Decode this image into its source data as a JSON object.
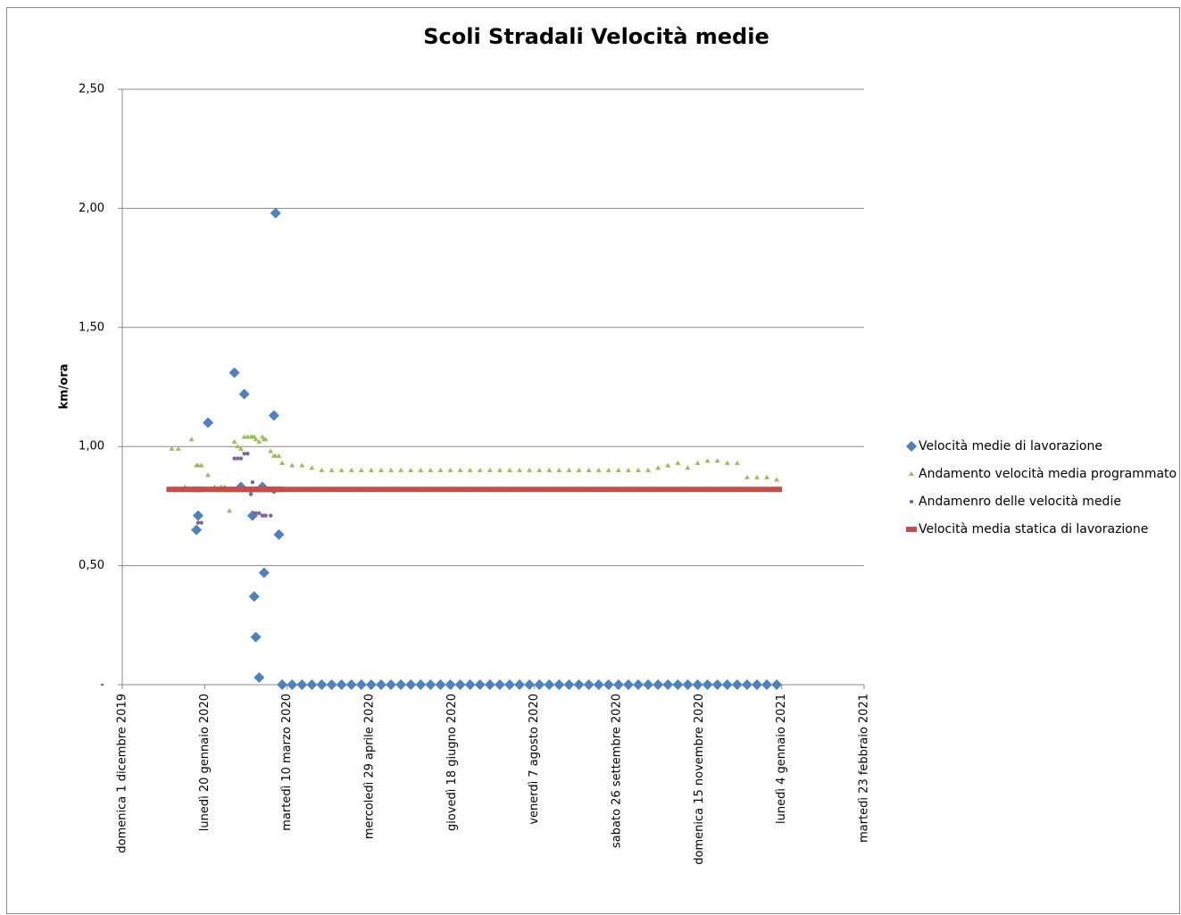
{
  "chart_data": {
    "type": "scatter",
    "title": "Scoli Stradali Velocità medie",
    "y_label": "km/ora",
    "xlim": [
      "2019-12-01",
      "2021-02-23"
    ],
    "xticks": [
      {
        "value": "2019-12-01",
        "label": "domenica 1 dicembre 2019"
      },
      {
        "value": "2020-01-20",
        "label": "lunedì 20 gennaio 2020"
      },
      {
        "value": "2020-03-10",
        "label": "martedì 10 marzo 2020"
      },
      {
        "value": "2020-04-29",
        "label": "mercoledì 29 aprile 2020"
      },
      {
        "value": "2020-06-18",
        "label": "giovedì 18 giugno 2020"
      },
      {
        "value": "2020-08-07",
        "label": "venerdì 7 agosto 2020"
      },
      {
        "value": "2020-09-26",
        "label": "sabato 26 settembre 2020"
      },
      {
        "value": "2020-11-15",
        "label": "domenica 15 novembre 2020"
      },
      {
        "value": "2021-01-04",
        "label": "lunedì 4 gennaio 2021"
      },
      {
        "value": "2021-02-23",
        "label": "martedì 23 febbraio 2021"
      }
    ],
    "ylim": [
      0,
      2.5
    ],
    "yticks": [
      {
        "value": 0,
        "label": "-"
      },
      {
        "value": 0.5,
        "label": "0,50"
      },
      {
        "value": 1,
        "label": "1,00"
      },
      {
        "value": 1.5,
        "label": "1,50"
      },
      {
        "value": 2,
        "label": "2,00"
      },
      {
        "value": 2.5,
        "label": "2,50"
      }
    ],
    "grid": true,
    "legend": "right",
    "x": [
      "2019-12-31",
      "2020-01-04",
      "2020-01-08",
      "2020-01-12",
      "2020-01-15",
      "2020-01-16",
      "2020-01-18",
      "2020-01-22",
      "2020-01-26",
      "2020-01-30",
      "2020-02-01",
      "2020-02-04",
      "2020-02-07",
      "2020-02-09",
      "2020-02-11",
      "2020-02-13",
      "2020-02-15",
      "2020-02-17",
      "2020-02-18",
      "2020-02-19",
      "2020-02-20",
      "2020-02-22",
      "2020-02-24",
      "2020-02-25",
      "2020-02-26",
      "2020-02-29",
      "2020-03-02",
      "2020-03-03",
      "2020-03-05",
      "2020-03-07",
      "2020-03-13",
      "2020-03-19",
      "2020-03-25",
      "2020-03-31",
      "2020-04-06",
      "2020-04-12",
      "2020-04-18",
      "2020-04-24",
      "2020-04-30",
      "2020-05-06",
      "2020-05-12",
      "2020-05-18",
      "2020-05-24",
      "2020-05-30",
      "2020-06-05",
      "2020-06-11",
      "2020-06-17",
      "2020-06-23",
      "2020-06-29",
      "2020-07-05",
      "2020-07-11",
      "2020-07-17",
      "2020-07-23",
      "2020-07-29",
      "2020-08-04",
      "2020-08-10",
      "2020-08-16",
      "2020-08-22",
      "2020-08-28",
      "2020-09-03",
      "2020-09-09",
      "2020-09-15",
      "2020-09-21",
      "2020-09-27",
      "2020-10-03",
      "2020-10-09",
      "2020-10-15",
      "2020-10-21",
      "2020-10-27",
      "2020-11-02",
      "2020-11-08",
      "2020-11-14",
      "2020-11-20",
      "2020-11-26",
      "2020-12-02",
      "2020-12-08",
      "2020-12-14",
      "2020-12-20",
      "2020-12-26",
      "2021-01-01"
    ],
    "series": [
      {
        "name": "Velocità medie di lavorazione",
        "color": "#4f81bd",
        "marker": "diamond",
        "values": [
          null,
          null,
          null,
          null,
          0.65,
          0.71,
          null,
          1.1,
          null,
          null,
          null,
          null,
          1.31,
          null,
          0.83,
          1.22,
          null,
          null,
          0.71,
          0.37,
          0.2,
          0.03,
          0.83,
          0.47,
          null,
          null,
          1.13,
          1.98,
          0.63,
          0,
          0,
          0,
          0,
          0,
          0,
          0,
          0,
          0,
          0,
          0,
          0,
          0,
          0,
          0,
          0,
          0,
          0,
          0,
          0,
          0,
          0,
          0,
          0,
          0,
          0,
          0,
          0,
          0,
          0,
          0,
          0,
          0,
          0,
          0,
          0,
          0,
          0,
          0,
          0,
          0,
          0,
          0,
          0,
          0,
          0,
          0,
          0,
          0,
          0,
          0
        ]
      },
      {
        "name": "Andamento velocità media programmato",
        "color": "#9bbb59",
        "marker": "triangle",
        "values": [
          0.99,
          0.99,
          0.83,
          1.03,
          0.92,
          0.92,
          0.92,
          0.88,
          0.83,
          0.83,
          0.83,
          0.73,
          1.02,
          1.0,
          0.99,
          1.04,
          1.04,
          1.04,
          1.04,
          1.04,
          1.03,
          1.02,
          1.04,
          1.03,
          1.03,
          0.98,
          0.96,
          0.96,
          0.96,
          0.93,
          0.92,
          0.92,
          0.91,
          0.9,
          0.9,
          0.9,
          0.9,
          0.9,
          0.9,
          0.9,
          0.9,
          0.9,
          0.9,
          0.9,
          0.9,
          0.9,
          0.9,
          0.9,
          0.9,
          0.9,
          0.9,
          0.9,
          0.9,
          0.9,
          0.9,
          0.9,
          0.9,
          0.9,
          0.9,
          0.9,
          0.9,
          0.9,
          0.9,
          0.9,
          0.9,
          0.9,
          0.9,
          0.91,
          0.92,
          0.93,
          0.91,
          0.93,
          0.94,
          0.94,
          0.93,
          0.93,
          0.87,
          0.87,
          0.87,
          0.86
        ]
      },
      {
        "name": "Andamenro delle velocità medie",
        "color": "#8064a2",
        "marker": "circle",
        "values": [
          null,
          null,
          null,
          null,
          null,
          0.68,
          0.68,
          0.82,
          0.82,
          0.82,
          0.82,
          0.82,
          0.95,
          0.95,
          0.95,
          0.97,
          0.97,
          0.8,
          0.85,
          0.72,
          0.72,
          0.72,
          0.71,
          0.71,
          0.71,
          0.71,
          0.81,
          0.82,
          null,
          null,
          null,
          null,
          null,
          null,
          null,
          null,
          null,
          null,
          null,
          null,
          null,
          null,
          null,
          null,
          null,
          null,
          null,
          null,
          null,
          null,
          null,
          null,
          null,
          null,
          null,
          null,
          null,
          null,
          null,
          null,
          null,
          null,
          null,
          null,
          null,
          null,
          null,
          null,
          null,
          null,
          null,
          null,
          null,
          null,
          null,
          null,
          null,
          null,
          null,
          null
        ]
      },
      {
        "name": "Velocità media statica di lavorazione",
        "color": "#c0504d",
        "marker": "square",
        "values": [
          0.82,
          0.82,
          0.82,
          0.82,
          0.82,
          0.82,
          0.82,
          0.82,
          0.82,
          0.82,
          0.82,
          0.82,
          0.82,
          0.82,
          0.82,
          0.82,
          0.82,
          0.82,
          0.82,
          0.82,
          0.82,
          0.82,
          0.82,
          0.82,
          0.82,
          0.82,
          0.82,
          0.82,
          0.82,
          0.82,
          0.82,
          0.82,
          0.82,
          0.82,
          0.82,
          0.82,
          0.82,
          0.82,
          0.82,
          0.82,
          0.82,
          0.82,
          0.82,
          0.82,
          0.82,
          0.82,
          0.82,
          0.82,
          0.82,
          0.82,
          0.82,
          0.82,
          0.82,
          0.82,
          0.82,
          0.82,
          0.82,
          0.82,
          0.82,
          0.82,
          0.82,
          0.82,
          0.82,
          0.82,
          0.82,
          0.82,
          0.82,
          0.82,
          0.82,
          0.82,
          0.82,
          0.82,
          0.82,
          0.82,
          0.82,
          0.82,
          0.82,
          0.82,
          0.82,
          0.82
        ]
      }
    ]
  }
}
